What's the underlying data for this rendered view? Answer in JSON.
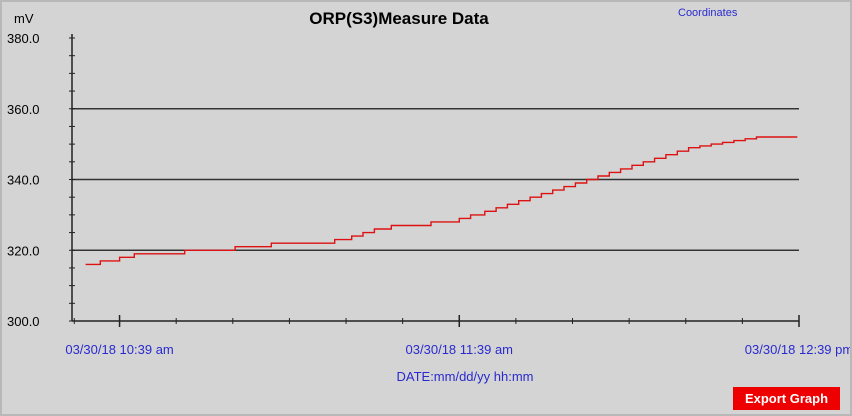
{
  "chart_data": {
    "type": "line",
    "title": "ORP(S3)Measure Data",
    "y_unit": "mV",
    "xlabel": "DATE:mm/dd/yy hh:mm",
    "ylim": [
      300,
      380
    ],
    "y_ticks": [
      "300.0",
      "320.0",
      "340.0",
      "360.0",
      "380.0"
    ],
    "x_tick_labels": [
      {
        "value": 0,
        "label": "03/30/18 10:39 am"
      },
      {
        "value": 60,
        "label": "03/30/18 11:39 am"
      },
      {
        "value": 120,
        "label": "03/30/18 12:39 pm"
      }
    ],
    "x_minor_ticks": [
      -8,
      0,
      10,
      20,
      30,
      40,
      50,
      60,
      70,
      80,
      90,
      100,
      110,
      120
    ],
    "xlim": [
      -8.4,
      120
    ],
    "grid": "horizontal",
    "series_color": "#dd1111",
    "series": [
      {
        "step": true,
        "x": [
          -6,
          -3.4,
          0,
          2.6,
          11.5,
          20.4,
          26.8,
          38,
          41,
          43,
          45,
          48,
          55,
          60,
          62,
          64.5,
          66.5,
          68.5,
          70.5,
          72.5,
          74.5,
          76.5,
          78.5,
          80.5,
          82.5,
          84.5,
          86.5,
          88.5,
          90.5,
          92.5,
          94.5,
          96.5,
          98.5,
          100.5,
          102.5,
          104.5,
          106.5,
          108.5,
          110.5,
          112.5,
          114.5,
          116.5,
          118.5,
          119.7
        ],
        "y": [
          316,
          317,
          318,
          319,
          320,
          321,
          322,
          323,
          324,
          325,
          326,
          327,
          328,
          329,
          330,
          331,
          332,
          333,
          334,
          335,
          336,
          337,
          338,
          339,
          340,
          341,
          342,
          343,
          344,
          345,
          346,
          347,
          348,
          349,
          349.5,
          350,
          350.5,
          351,
          351.5,
          352,
          352,
          352,
          352,
          352
        ]
      }
    ]
  },
  "ui": {
    "coordinates_link": "Coordinates",
    "export_button": "Export Graph"
  }
}
